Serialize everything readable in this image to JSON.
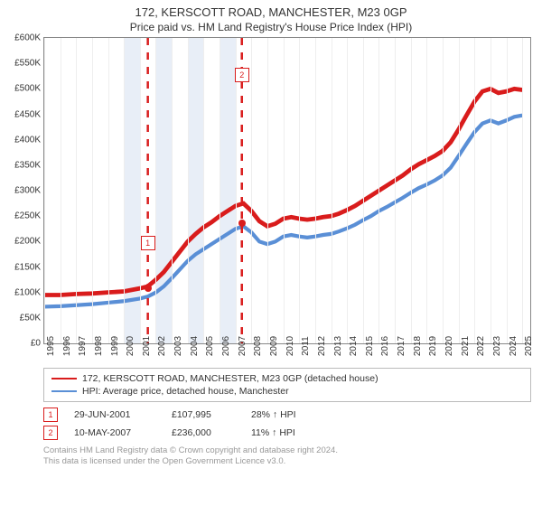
{
  "title": "172, KERSCOTT ROAD, MANCHESTER, M23 0GP",
  "subtitle": "Price paid vs. HM Land Registry's House Price Index (HPI)",
  "chart": {
    "type": "line",
    "background_color": "#ffffff",
    "grid_color": "#eeeeee",
    "border_color": "#888888",
    "xlim": [
      1995,
      2025.5
    ],
    "ylim": [
      0,
      600
    ],
    "y_unit_prefix": "£",
    "y_unit_suffix": "K",
    "yticks": [
      0,
      50,
      100,
      150,
      200,
      250,
      300,
      350,
      400,
      450,
      500,
      550,
      600
    ],
    "xticks": [
      1995,
      1996,
      1997,
      1998,
      1999,
      2000,
      2001,
      2002,
      2003,
      2004,
      2005,
      2006,
      2007,
      2008,
      2009,
      2010,
      2011,
      2012,
      2013,
      2014,
      2015,
      2016,
      2017,
      2018,
      2019,
      2020,
      2021,
      2022,
      2023,
      2024,
      2025
    ],
    "shaded_bands_years": [
      [
        2000,
        2001
      ],
      [
        2002,
        2003
      ],
      [
        2004,
        2005
      ],
      [
        2006,
        2007
      ]
    ],
    "shade_color": "#e8eef7",
    "label_fontsize": 10,
    "series": [
      {
        "id": "property",
        "legend": "172, KERSCOTT ROAD, MANCHESTER, M23 0GP (detached house)",
        "color": "#d91c1c",
        "stroke_width": 1.6,
        "points": [
          [
            1995,
            95
          ],
          [
            1996,
            95
          ],
          [
            1997,
            97
          ],
          [
            1998,
            98
          ],
          [
            1999,
            100
          ],
          [
            2000,
            102
          ],
          [
            2001,
            108
          ],
          [
            2001.5,
            112
          ],
          [
            2002,
            125
          ],
          [
            2002.5,
            140
          ],
          [
            2003,
            160
          ],
          [
            2003.5,
            180
          ],
          [
            2004,
            200
          ],
          [
            2004.5,
            215
          ],
          [
            2005,
            228
          ],
          [
            2005.5,
            238
          ],
          [
            2006,
            250
          ],
          [
            2006.5,
            260
          ],
          [
            2007,
            270
          ],
          [
            2007.5,
            275
          ],
          [
            2008,
            260
          ],
          [
            2008.5,
            240
          ],
          [
            2009,
            230
          ],
          [
            2009.5,
            235
          ],
          [
            2010,
            245
          ],
          [
            2010.5,
            248
          ],
          [
            2011,
            245
          ],
          [
            2011.5,
            243
          ],
          [
            2012,
            245
          ],
          [
            2012.5,
            248
          ],
          [
            2013,
            250
          ],
          [
            2013.5,
            255
          ],
          [
            2014,
            262
          ],
          [
            2014.5,
            270
          ],
          [
            2015,
            280
          ],
          [
            2015.5,
            290
          ],
          [
            2016,
            300
          ],
          [
            2016.5,
            310
          ],
          [
            2017,
            320
          ],
          [
            2017.5,
            330
          ],
          [
            2018,
            342
          ],
          [
            2018.5,
            352
          ],
          [
            2019,
            360
          ],
          [
            2019.5,
            368
          ],
          [
            2020,
            378
          ],
          [
            2020.5,
            395
          ],
          [
            2021,
            420
          ],
          [
            2021.5,
            448
          ],
          [
            2022,
            475
          ],
          [
            2022.5,
            495
          ],
          [
            2023,
            500
          ],
          [
            2023.5,
            492
          ],
          [
            2024,
            495
          ],
          [
            2024.5,
            500
          ],
          [
            2025,
            498
          ]
        ]
      },
      {
        "id": "hpi",
        "legend": "HPI: Average price, detached house, Manchester",
        "color": "#5a8fd6",
        "stroke_width": 1.4,
        "points": [
          [
            1995,
            72
          ],
          [
            1996,
            73
          ],
          [
            1997,
            75
          ],
          [
            1998,
            77
          ],
          [
            1999,
            80
          ],
          [
            2000,
            83
          ],
          [
            2001,
            88
          ],
          [
            2001.5,
            92
          ],
          [
            2002,
            100
          ],
          [
            2002.5,
            112
          ],
          [
            2003,
            128
          ],
          [
            2003.5,
            145
          ],
          [
            2004,
            162
          ],
          [
            2004.5,
            175
          ],
          [
            2005,
            185
          ],
          [
            2005.5,
            195
          ],
          [
            2006,
            205
          ],
          [
            2006.5,
            215
          ],
          [
            2007,
            225
          ],
          [
            2007.5,
            230
          ],
          [
            2008,
            218
          ],
          [
            2008.5,
            200
          ],
          [
            2009,
            195
          ],
          [
            2009.5,
            200
          ],
          [
            2010,
            210
          ],
          [
            2010.5,
            213
          ],
          [
            2011,
            210
          ],
          [
            2011.5,
            208
          ],
          [
            2012,
            210
          ],
          [
            2012.5,
            213
          ],
          [
            2013,
            215
          ],
          [
            2013.5,
            220
          ],
          [
            2014,
            226
          ],
          [
            2014.5,
            233
          ],
          [
            2015,
            242
          ],
          [
            2015.5,
            250
          ],
          [
            2016,
            260
          ],
          [
            2016.5,
            268
          ],
          [
            2017,
            277
          ],
          [
            2017.5,
            286
          ],
          [
            2018,
            296
          ],
          [
            2018.5,
            305
          ],
          [
            2019,
            312
          ],
          [
            2019.5,
            320
          ],
          [
            2020,
            330
          ],
          [
            2020.5,
            345
          ],
          [
            2021,
            368
          ],
          [
            2021.5,
            392
          ],
          [
            2022,
            415
          ],
          [
            2022.5,
            432
          ],
          [
            2023,
            438
          ],
          [
            2023.5,
            432
          ],
          [
            2024,
            438
          ],
          [
            2024.5,
            445
          ],
          [
            2025,
            448
          ]
        ]
      }
    ],
    "sale_markers": [
      {
        "n": "1",
        "year": 2001.5,
        "value": 108,
        "box_top_offset": -50
      },
      {
        "n": "2",
        "year": 2007.4,
        "value": 236,
        "box_top_offset": -165
      }
    ],
    "marker_color": "#d91c1c",
    "marker_dashed_color": "#d91c1c"
  },
  "sales": [
    {
      "n": "1",
      "date": "29-JUN-2001",
      "price": "£107,995",
      "diff": "28% ↑ HPI"
    },
    {
      "n": "2",
      "date": "10-MAY-2007",
      "price": "£236,000",
      "diff": "11% ↑ HPI"
    }
  ],
  "footer_line1": "Contains HM Land Registry data © Crown copyright and database right 2024.",
  "footer_line2": "This data is licensed under the Open Government Licence v3.0."
}
